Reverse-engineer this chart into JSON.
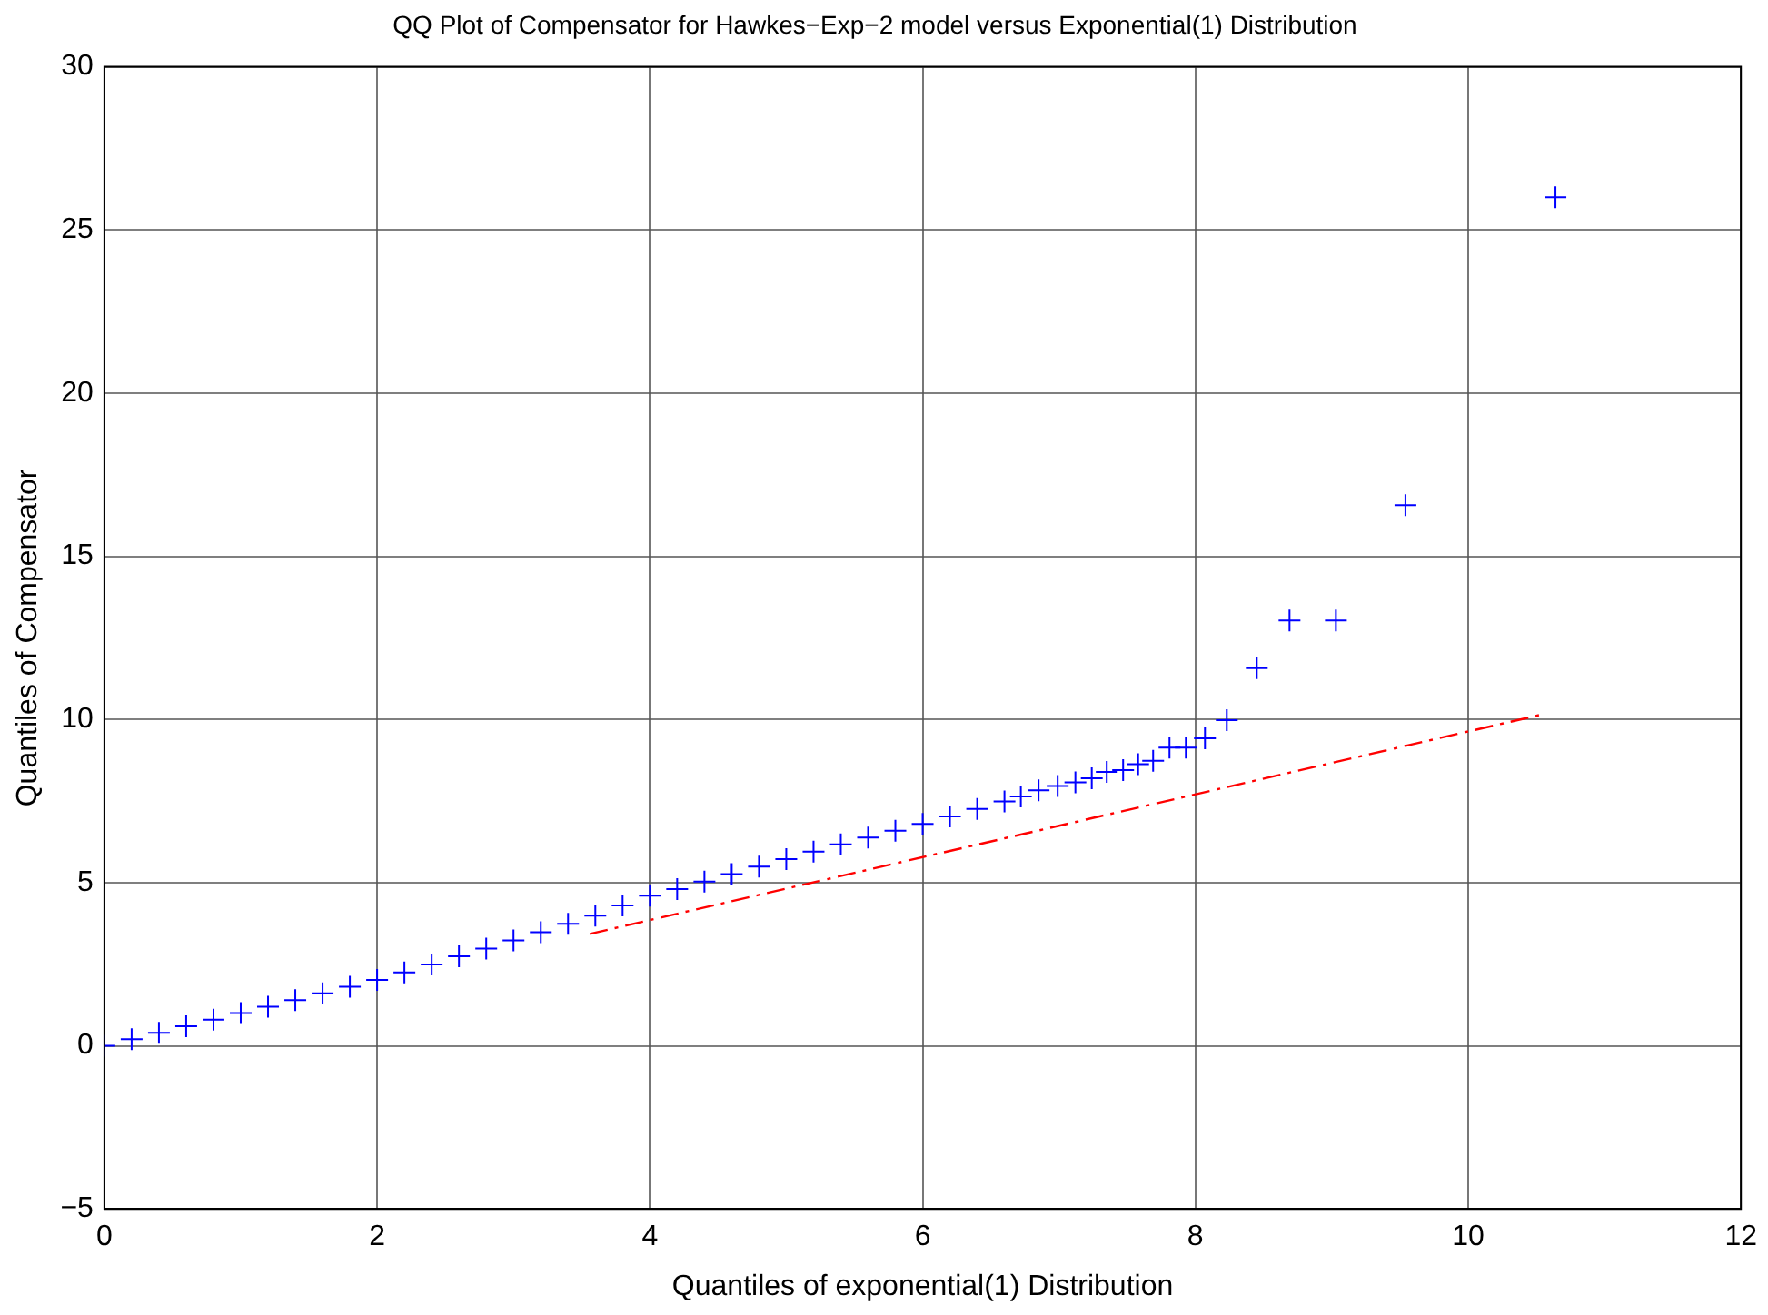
{
  "chart_data": {
    "type": "scatter",
    "title": "QQ Plot of Compensator for Hawkes−Exp−2 model versus Exponential(1) Distribution",
    "xlabel": "Quantiles of exponential(1) Distribution",
    "ylabel": "Quantiles of Compensator",
    "series": [
      {
        "color": "#0000ff",
        "marker": "cross",
        "x": [
          0,
          0.2,
          0.4,
          0.6,
          0.8,
          1.0,
          1.2,
          1.4,
          1.6,
          1.8,
          2.0,
          2.2,
          2.4,
          2.6,
          2.8,
          3.0,
          3.2,
          3.4,
          3.6,
          3.8,
          4.0,
          4.2,
          4.4,
          4.6,
          4.8,
          5.0,
          5.2,
          5.4,
          5.6,
          5.8,
          6.0,
          6.2,
          6.4,
          6.6,
          6.72,
          6.85,
          6.99,
          7.12,
          7.24,
          7.35,
          7.47,
          7.58,
          7.69,
          7.81,
          7.93,
          8.07,
          8.23,
          8.45,
          8.69,
          9.03,
          9.54,
          10.64
        ],
        "values": [
          0,
          0.2,
          0.4,
          0.6,
          0.8,
          1.0,
          1.2,
          1.4,
          1.61,
          1.81,
          2.02,
          2.25,
          2.49,
          2.74,
          2.98,
          3.23,
          3.48,
          3.74,
          3.99,
          4.3,
          4.6,
          4.8,
          5.03,
          5.26,
          5.49,
          5.72,
          5.95,
          6.17,
          6.38,
          6.59,
          6.8,
          7.03,
          7.26,
          7.49,
          7.64,
          7.83,
          7.96,
          8.07,
          8.2,
          8.39,
          8.45,
          8.63,
          8.73,
          9.14,
          9.14,
          9.42,
          9.98,
          11.57,
          13.03,
          13.03,
          16.57,
          26.0
        ]
      },
      {
        "type": "line",
        "color": "#ff0000",
        "marker": "none",
        "line_style": "dashed",
        "x": [
          3.56,
          10.56
        ],
        "values": [
          3.43,
          10.17
        ]
      }
    ],
    "xlim": [
      0,
      12
    ],
    "xticks": [
      0,
      2,
      4,
      6,
      8,
      10,
      12
    ],
    "ylim": [
      -5,
      30
    ],
    "yticks": [
      -5,
      0,
      5,
      10,
      15,
      20,
      25,
      30
    ],
    "grid": true,
    "legend": false
  }
}
